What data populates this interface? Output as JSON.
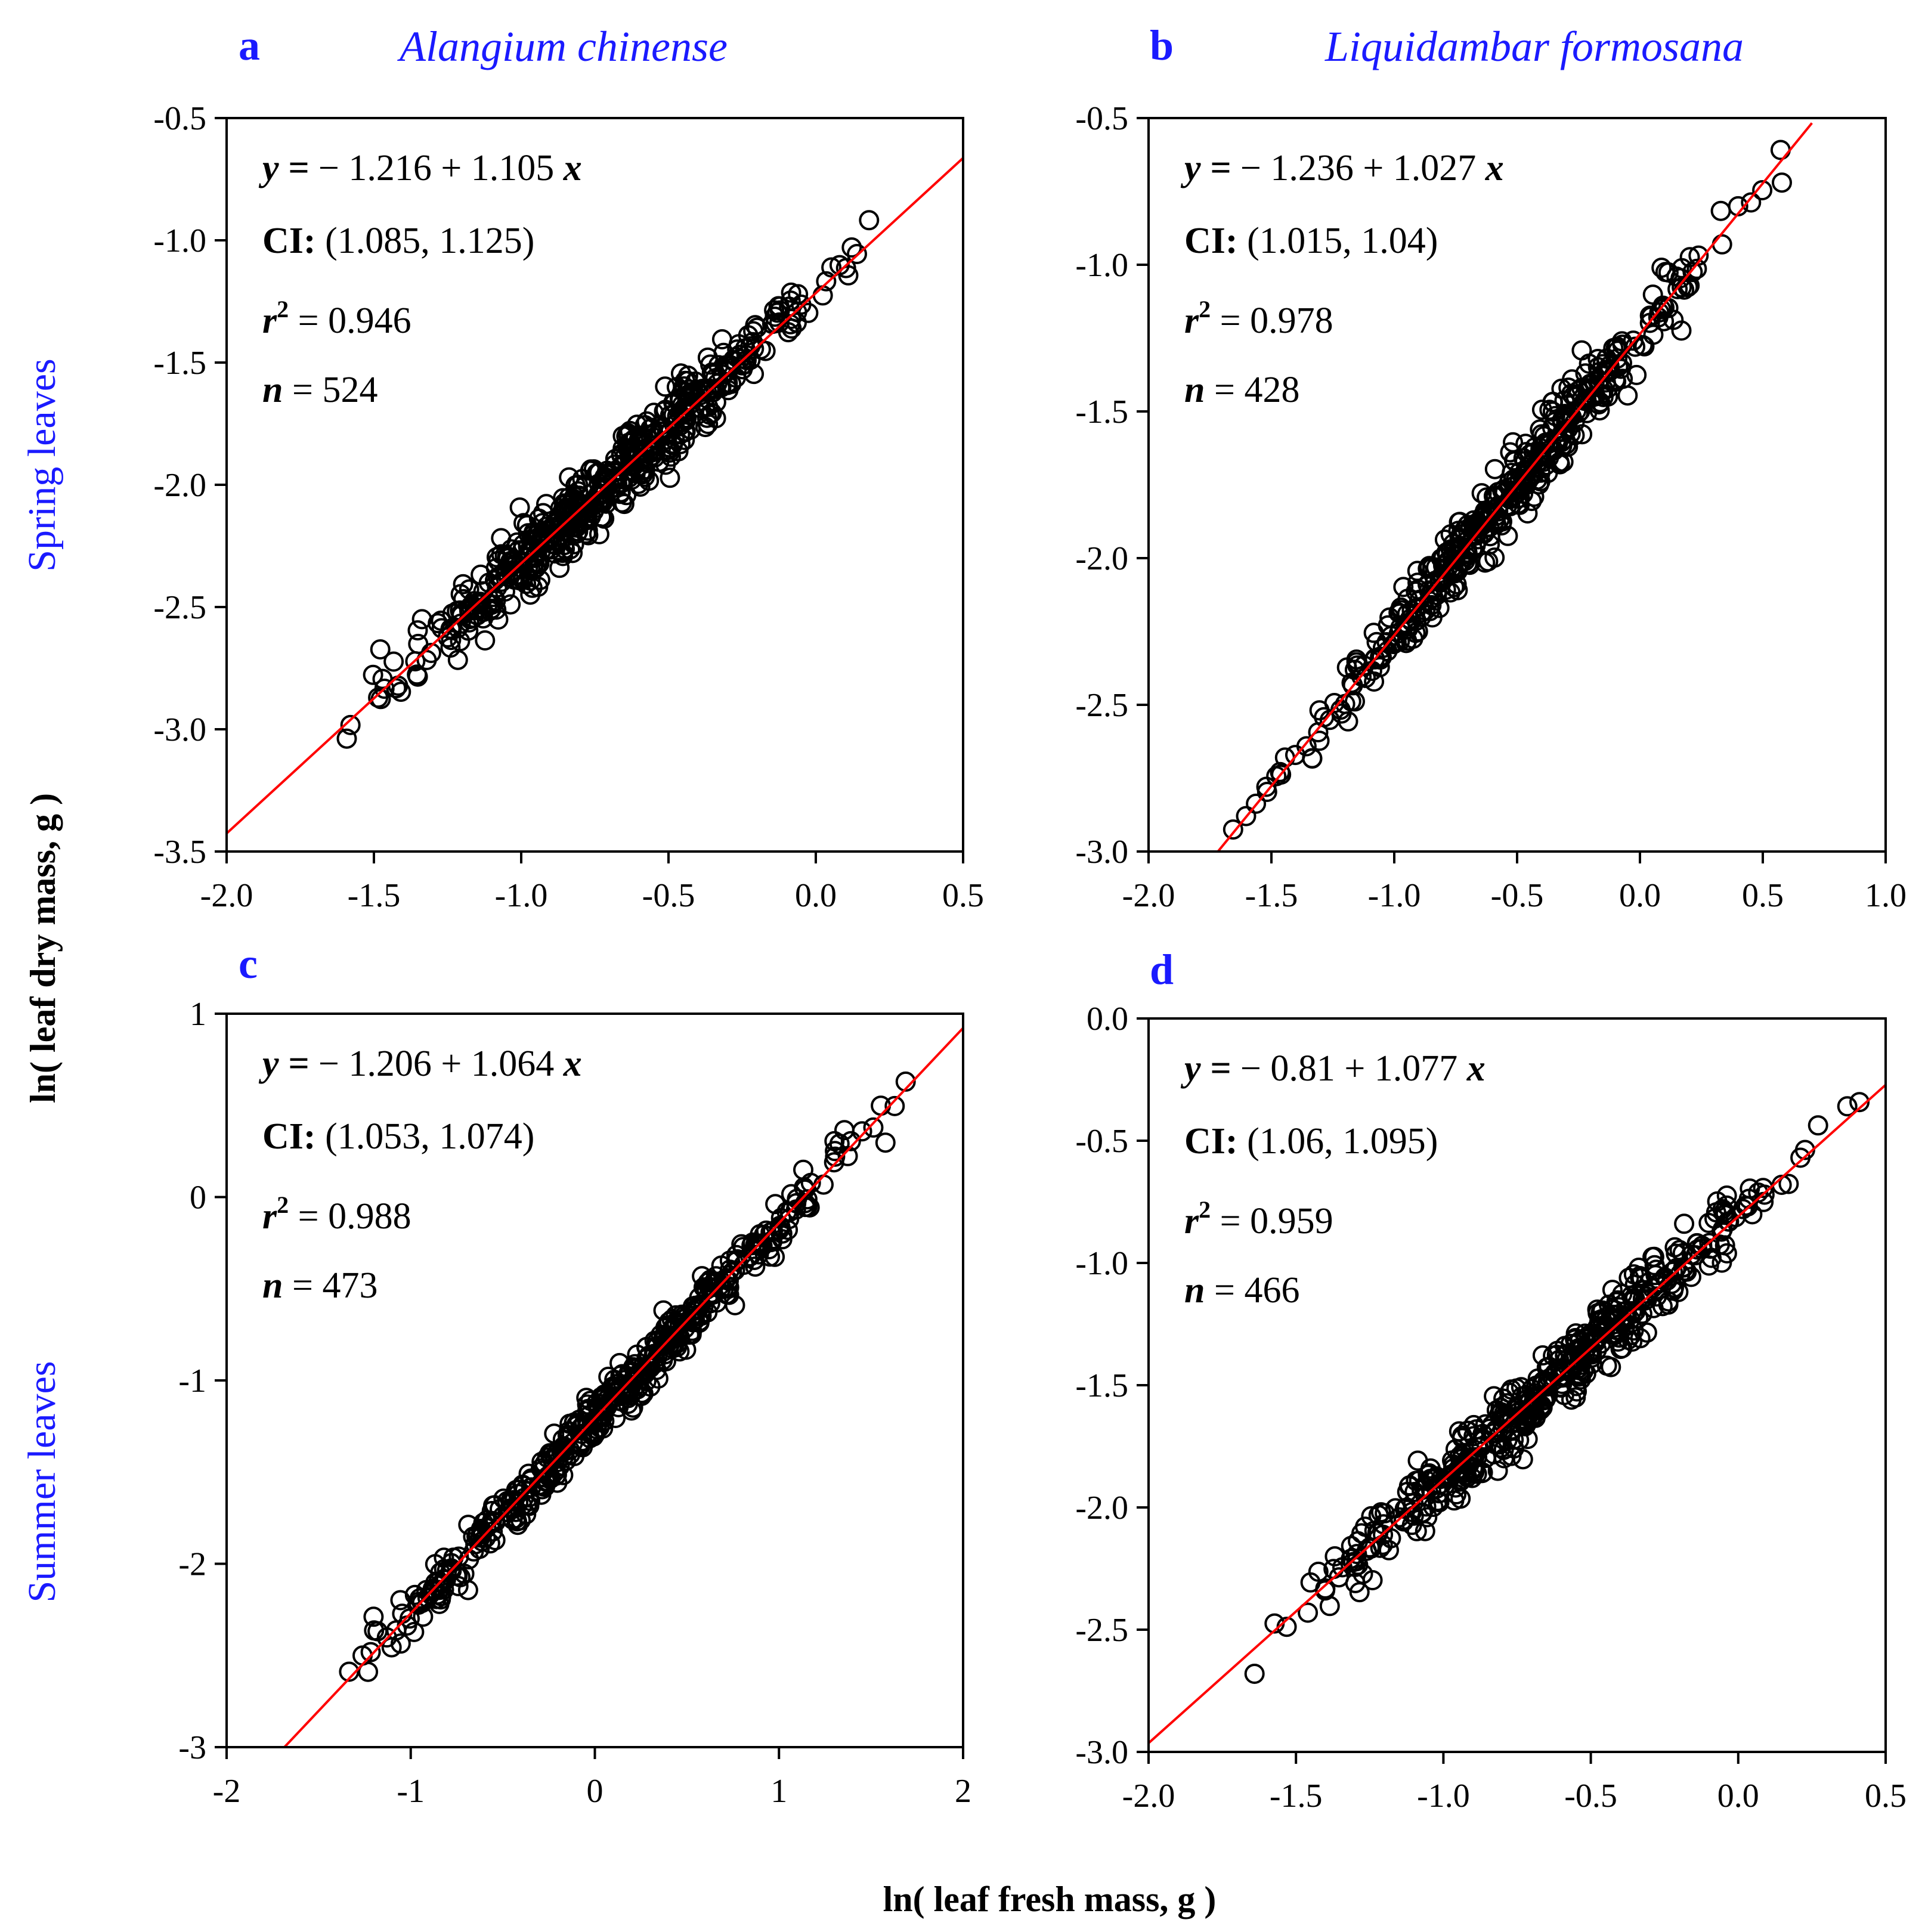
{
  "figure": {
    "shared_xlabel": "ln( leaf fresh mass,  g )",
    "shared_ylabel": "ln( leaf dry mass,  g )",
    "row_labels": [
      "Spring leaves",
      "Summer leaves"
    ],
    "column_titles": [
      "Alangium chinense",
      "Liquidambar formosana"
    ]
  },
  "colors": {
    "axis": "#000000",
    "fit_line": "#ff0000",
    "marker": "#000000",
    "accent_text": "#1a1aff"
  },
  "chart_data": [
    {
      "type": "scatter",
      "panel": "a",
      "species": "Alangium chinense",
      "season": "Spring leaves",
      "xlim": [
        -2.0,
        0.5
      ],
      "ylim": [
        -3.5,
        -0.5
      ],
      "xticks": [
        "-2.0",
        "-1.5",
        "-1.0",
        "-0.5",
        "0.0",
        "0.5"
      ],
      "yticks": [
        "-3.5",
        "-3.0",
        "-2.5",
        "-2.0",
        "-1.5",
        "-1.0",
        "-0.5"
      ],
      "fit": {
        "intercept": -1.216,
        "slope": 1.105,
        "x_range": [
          -2.0,
          0.5
        ]
      },
      "annotations": {
        "eq_prefix": "y =",
        "eq_body": "− 1.216 + 1.105",
        "eq_x": "x",
        "ci_label": "CI:",
        "ci_value": "(1.085, 1.125)",
        "r2_label": "r",
        "r2_sup": "2",
        "r2_value": "= 0.946",
        "n_label": "n",
        "n_value": "= 524"
      },
      "points": {
        "n": 524,
        "x_range": [
          -1.64,
          0.24
        ],
        "scatter_sd": 0.07,
        "seed": 11
      }
    },
    {
      "type": "scatter",
      "panel": "b",
      "species": "Liquidambar formosana",
      "season": "Spring leaves",
      "xlim": [
        -2.0,
        1.0
      ],
      "ylim": [
        -3.0,
        -0.5
      ],
      "xticks": [
        "-2.0",
        "-1.5",
        "-1.0",
        "-0.5",
        "0.0",
        "0.5",
        "1.0"
      ],
      "yticks": [
        "-3.0",
        "-2.5",
        "-2.0",
        "-1.5",
        "-1.0",
        "-0.5"
      ],
      "fit": {
        "intercept": -1.236,
        "slope": 1.027,
        "x_range": [
          -1.72,
          0.7
        ]
      },
      "annotations": {
        "eq_prefix": "y =",
        "eq_body": "− 1.236 + 1.027",
        "eq_x": "x",
        "ci_label": "CI:",
        "ci_value": "(1.015, 1.04)",
        "r2_label": "r",
        "r2_sup": "2",
        "r2_value": "= 0.978",
        "n_label": "n",
        "n_value": "= 428"
      },
      "points": {
        "n": 428,
        "x_range": [
          -1.66,
          0.62
        ],
        "scatter_sd": 0.055,
        "seed": 23
      }
    },
    {
      "type": "scatter",
      "panel": "c",
      "species": "Alangium chinense",
      "season": "Summer leaves",
      "xlim": [
        -2,
        2
      ],
      "ylim": [
        -3,
        1
      ],
      "xticks": [
        "-2",
        "-1",
        "0",
        "1",
        "2"
      ],
      "yticks": [
        "-3",
        "-2",
        "-1",
        "0",
        "1"
      ],
      "fit": {
        "intercept": -1.206,
        "slope": 1.064,
        "x_range": [
          -1.69,
          2.0
        ]
      },
      "annotations": {
        "eq_prefix": "y =",
        "eq_body": "− 1.206 + 1.064",
        "eq_x": "x",
        "ci_label": "CI:",
        "ci_value": "(1.053, 1.074)",
        "r2_label": "r",
        "r2_sup": "2",
        "r2_value": "= 0.988",
        "n_label": "n",
        "n_value": "= 473"
      },
      "points": {
        "n": 473,
        "x_range": [
          -1.55,
          1.8
        ],
        "scatter_sd": 0.07,
        "seed": 37
      }
    },
    {
      "type": "scatter",
      "panel": "d",
      "species": "Liquidambar formosana",
      "season": "Summer leaves",
      "xlim": [
        -2.0,
        0.5
      ],
      "ylim": [
        -3.0,
        0.0
      ],
      "xticks": [
        "-2.0",
        "-1.5",
        "-1.0",
        "-0.5",
        "0.0",
        "0.5"
      ],
      "yticks": [
        "-3.0",
        "-2.5",
        "-2.0",
        "-1.5",
        "-1.0",
        "-0.5",
        "0.0"
      ],
      "fit": {
        "intercept": -0.81,
        "slope": 1.077,
        "x_range": [
          -2.0,
          0.5
        ]
      },
      "annotations": {
        "eq_prefix": "y =",
        "eq_body": "− 0.81 + 1.077",
        "eq_x": "x",
        "ci_label": "CI:",
        "ci_value": "(1.06, 1.095)",
        "r2_label": "r",
        "r2_sup": "2",
        "r2_value": "= 0.959",
        "n_label": "n",
        "n_value": "= 466"
      },
      "points": {
        "n": 466,
        "x_range": [
          -1.7,
          0.45
        ],
        "scatter_sd": 0.07,
        "seed": 53
      }
    }
  ]
}
